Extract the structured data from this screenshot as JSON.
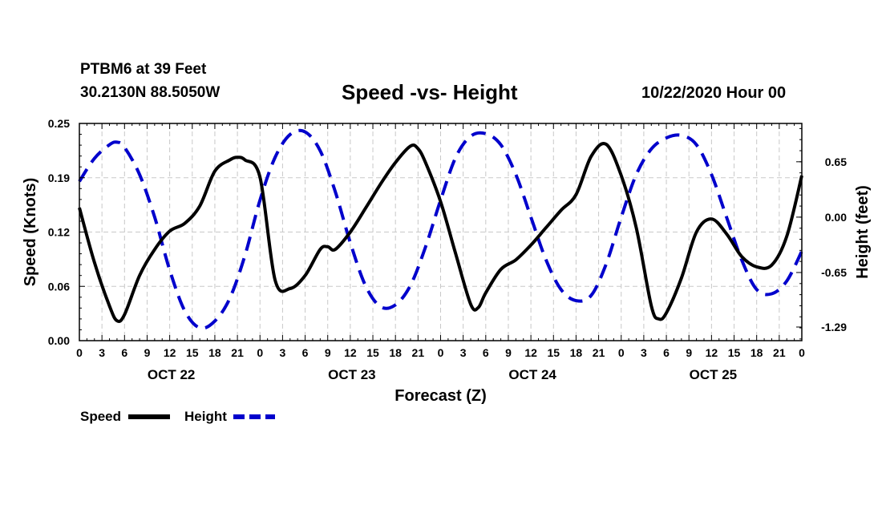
{
  "header": {
    "station": "PTBM6 at 39 Feet",
    "coords": "30.2130N 88.5050W",
    "title": "Speed -vs- Height",
    "date": "10/22/2020 Hour 00"
  },
  "chart_data": {
    "type": "line",
    "title": "Speed -vs- Height",
    "xlabel": "Forecast (Z)",
    "ylabel_left": "Speed (Knots)",
    "ylabel_right": "Height (feet)",
    "x_units": "hours since 10/22/2020 00Z",
    "xlim": [
      0,
      96
    ],
    "ylim_left": [
      0,
      0.25
    ],
    "ylim_right": [
      -1.45,
      1.1
    ],
    "grid": true,
    "x_tick_labels": [
      "0",
      "3",
      "6",
      "9",
      "12",
      "15",
      "18",
      "21",
      "0",
      "3",
      "6",
      "9",
      "12",
      "15",
      "18",
      "21",
      "0",
      "3",
      "6",
      "9",
      "12",
      "15",
      "18",
      "21",
      "0",
      "3",
      "6",
      "9",
      "12",
      "15",
      "18",
      "21",
      "0"
    ],
    "day_labels": [
      {
        "label": "OCT 22",
        "x": 12
      },
      {
        "label": "OCT 23",
        "x": 36
      },
      {
        "label": "OCT 24",
        "x": 60
      },
      {
        "label": "OCT 25",
        "x": 84
      }
    ],
    "left_ticks": [
      {
        "value": 0.0,
        "label": "0.00"
      },
      {
        "value": 0.0625,
        "label": "0.06"
      },
      {
        "value": 0.125,
        "label": "0.12"
      },
      {
        "value": 0.1875,
        "label": "0.19"
      },
      {
        "value": 0.25,
        "label": "0.25"
      }
    ],
    "right_ticks": [
      {
        "value": 0.65,
        "label": "0.65"
      },
      {
        "value": 0.0,
        "label": "0.00"
      },
      {
        "value": -0.65,
        "label": "-0.65"
      },
      {
        "value": -1.29,
        "label": "-1.29"
      }
    ],
    "series": [
      {
        "name": "Speed",
        "axis": "left",
        "color": "#000000",
        "style": "solid",
        "points": [
          [
            0,
            0.153
          ],
          [
            2,
            0.09
          ],
          [
            4,
            0.04
          ],
          [
            5,
            0.023
          ],
          [
            6,
            0.03
          ],
          [
            8,
            0.075
          ],
          [
            10,
            0.105
          ],
          [
            12,
            0.126
          ],
          [
            14,
            0.135
          ],
          [
            16,
            0.155
          ],
          [
            18,
            0.195
          ],
          [
            20,
            0.208
          ],
          [
            21,
            0.211
          ],
          [
            22,
            0.208
          ],
          [
            24,
            0.188
          ],
          [
            26,
            0.07
          ],
          [
            28,
            0.06
          ],
          [
            30,
            0.075
          ],
          [
            32,
            0.105
          ],
          [
            33,
            0.108
          ],
          [
            34,
            0.105
          ],
          [
            36,
            0.125
          ],
          [
            38,
            0.152
          ],
          [
            40,
            0.18
          ],
          [
            42,
            0.205
          ],
          [
            44,
            0.224
          ],
          [
            45,
            0.221
          ],
          [
            46,
            0.205
          ],
          [
            48,
            0.16
          ],
          [
            50,
            0.1
          ],
          [
            52,
            0.042
          ],
          [
            53,
            0.038
          ],
          [
            54,
            0.055
          ],
          [
            56,
            0.082
          ],
          [
            58,
            0.093
          ],
          [
            60,
            0.11
          ],
          [
            62,
            0.13
          ],
          [
            64,
            0.15
          ],
          [
            66,
            0.168
          ],
          [
            68,
            0.212
          ],
          [
            70,
            0.226
          ],
          [
            72,
            0.19
          ],
          [
            74,
            0.13
          ],
          [
            76,
            0.04
          ],
          [
            77,
            0.025
          ],
          [
            78,
            0.032
          ],
          [
            80,
            0.072
          ],
          [
            82,
            0.125
          ],
          [
            84,
            0.14
          ],
          [
            86,
            0.123
          ],
          [
            88,
            0.097
          ],
          [
            90,
            0.085
          ],
          [
            92,
            0.087
          ],
          [
            94,
            0.12
          ],
          [
            96,
            0.19
          ]
        ]
      },
      {
        "name": "Height",
        "axis": "right",
        "color": "#0000cc",
        "style": "dashed",
        "points": [
          [
            0,
            0.42
          ],
          [
            2,
            0.69
          ],
          [
            4,
            0.85
          ],
          [
            5,
            0.88
          ],
          [
            6,
            0.82
          ],
          [
            8,
            0.5
          ],
          [
            10,
            0.0
          ],
          [
            12,
            -0.62
          ],
          [
            14,
            -1.1
          ],
          [
            16,
            -1.3
          ],
          [
            18,
            -1.22
          ],
          [
            20,
            -0.95
          ],
          [
            22,
            -0.45
          ],
          [
            24,
            0.2
          ],
          [
            26,
            0.7
          ],
          [
            28,
            0.97
          ],
          [
            30,
            1.0
          ],
          [
            32,
            0.78
          ],
          [
            34,
            0.3
          ],
          [
            36,
            -0.3
          ],
          [
            38,
            -0.8
          ],
          [
            40,
            -1.05
          ],
          [
            42,
            -1.03
          ],
          [
            44,
            -0.8
          ],
          [
            46,
            -0.35
          ],
          [
            48,
            0.2
          ],
          [
            50,
            0.7
          ],
          [
            52,
            0.95
          ],
          [
            54,
            0.98
          ],
          [
            56,
            0.85
          ],
          [
            58,
            0.5
          ],
          [
            60,
            0.0
          ],
          [
            62,
            -0.5
          ],
          [
            64,
            -0.85
          ],
          [
            66,
            -0.98
          ],
          [
            68,
            -0.92
          ],
          [
            70,
            -0.55
          ],
          [
            72,
            0.0
          ],
          [
            74,
            0.5
          ],
          [
            76,
            0.8
          ],
          [
            78,
            0.93
          ],
          [
            80,
            0.96
          ],
          [
            82,
            0.85
          ],
          [
            84,
            0.5
          ],
          [
            86,
            0.0
          ],
          [
            88,
            -0.5
          ],
          [
            90,
            -0.85
          ],
          [
            92,
            -0.9
          ],
          [
            94,
            -0.75
          ],
          [
            96,
            -0.4
          ]
        ]
      }
    ],
    "legend": [
      {
        "label": "Speed",
        "color": "#000000",
        "style": "solid"
      },
      {
        "label": "Height",
        "color": "#0000cc",
        "style": "dashed"
      }
    ]
  }
}
